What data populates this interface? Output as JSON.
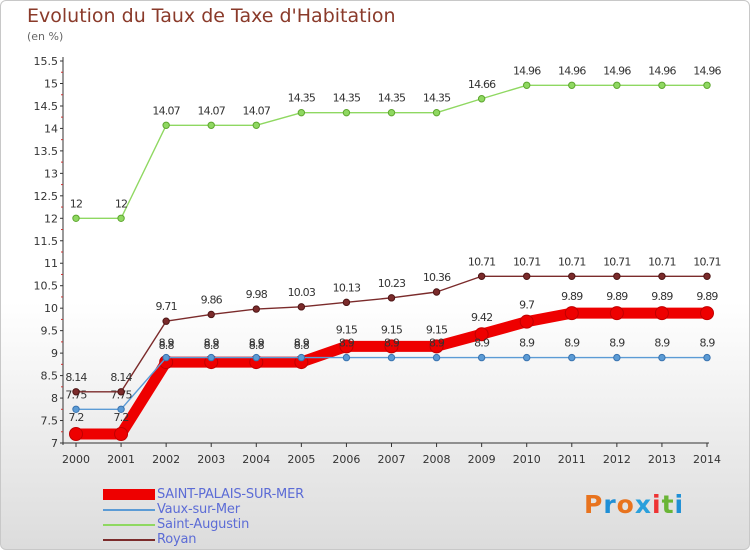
{
  "header": {
    "title": "Evolution du Taux de Taxe d'Habitation",
    "subtitle": "(en %)"
  },
  "logo": {
    "text": "Proxiti",
    "colors": [
      "#e8731e",
      "#1f8fd6",
      "#e8731e",
      "#2aa0dc",
      "#e33",
      "#6ab536",
      "#1f8fd6"
    ]
  },
  "chart_data": {
    "type": "line",
    "x": [
      "2000",
      "2001",
      "2002",
      "2003",
      "2004",
      "2005",
      "2006",
      "2007",
      "2008",
      "2009",
      "2010",
      "2011",
      "2012",
      "2013",
      "2014"
    ],
    "ylim": [
      7,
      15.5
    ],
    "yticks": [
      "7",
      "7.5",
      "8",
      "8.5",
      "9",
      "9.5",
      "10",
      "10.5",
      "11",
      "11.5",
      "12",
      "12.5",
      "13",
      "13.5",
      "14",
      "14.5",
      "15",
      "15.5"
    ],
    "grid": false,
    "legend_position": "bottom-left",
    "series": [
      {
        "name": "SAINT-PALAIS-SUR-MER",
        "color": "#ee0000",
        "values": [
          7.2,
          7.2,
          8.8,
          8.8,
          8.8,
          8.8,
          9.15,
          9.15,
          9.15,
          9.42,
          9.7,
          9.89,
          9.89,
          9.89,
          9.89
        ],
        "labels": [
          "7.2",
          "7.2",
          "8.8",
          "8.8",
          "8.8",
          "8.8",
          "9.15",
          "9.15",
          "9.15",
          "9.42",
          "9.7",
          "9.89",
          "9.89",
          "9.89",
          "9.89"
        ]
      },
      {
        "name": "Vaux-sur-Mer",
        "color": "#5b9bd5",
        "values": [
          7.75,
          7.75,
          8.9,
          8.9,
          8.9,
          8.9,
          8.9,
          8.9,
          8.9,
          8.9,
          8.9,
          8.9,
          8.9,
          8.9,
          8.9
        ],
        "labels": [
          "7.75",
          "7.75",
          "8.9",
          "8.9",
          "8.9",
          "8.9",
          "8.9",
          "8.9",
          "8.9",
          "8.9",
          "8.9",
          "8.9",
          "8.9",
          "8.9",
          "8.9"
        ]
      },
      {
        "name": "Saint-Augustin",
        "color": "#8fd861",
        "values": [
          12,
          12,
          14.07,
          14.07,
          14.07,
          14.35,
          14.35,
          14.35,
          14.35,
          14.66,
          14.96,
          14.96,
          14.96,
          14.96,
          14.96
        ],
        "labels": [
          "12",
          "12",
          "14.07",
          "14.07",
          "14.07",
          "14.35",
          "14.35",
          "14.35",
          "14.35",
          "14.66",
          "14.96",
          "14.96",
          "14.96",
          "14.96",
          "14.96"
        ]
      },
      {
        "name": "Royan",
        "color": "#7b2b2b",
        "values": [
          8.14,
          8.14,
          9.71,
          9.86,
          9.98,
          10.03,
          10.13,
          10.23,
          10.36,
          10.71,
          10.71,
          10.71,
          10.71,
          10.71,
          10.71
        ],
        "labels": [
          "8.14",
          "8.14",
          "9.71",
          "9.86",
          "9.98",
          "10.03",
          "10.13",
          "10.23",
          "10.36",
          "10.71",
          "10.71",
          "10.71",
          "10.71",
          "10.71",
          "10.71"
        ]
      }
    ]
  }
}
